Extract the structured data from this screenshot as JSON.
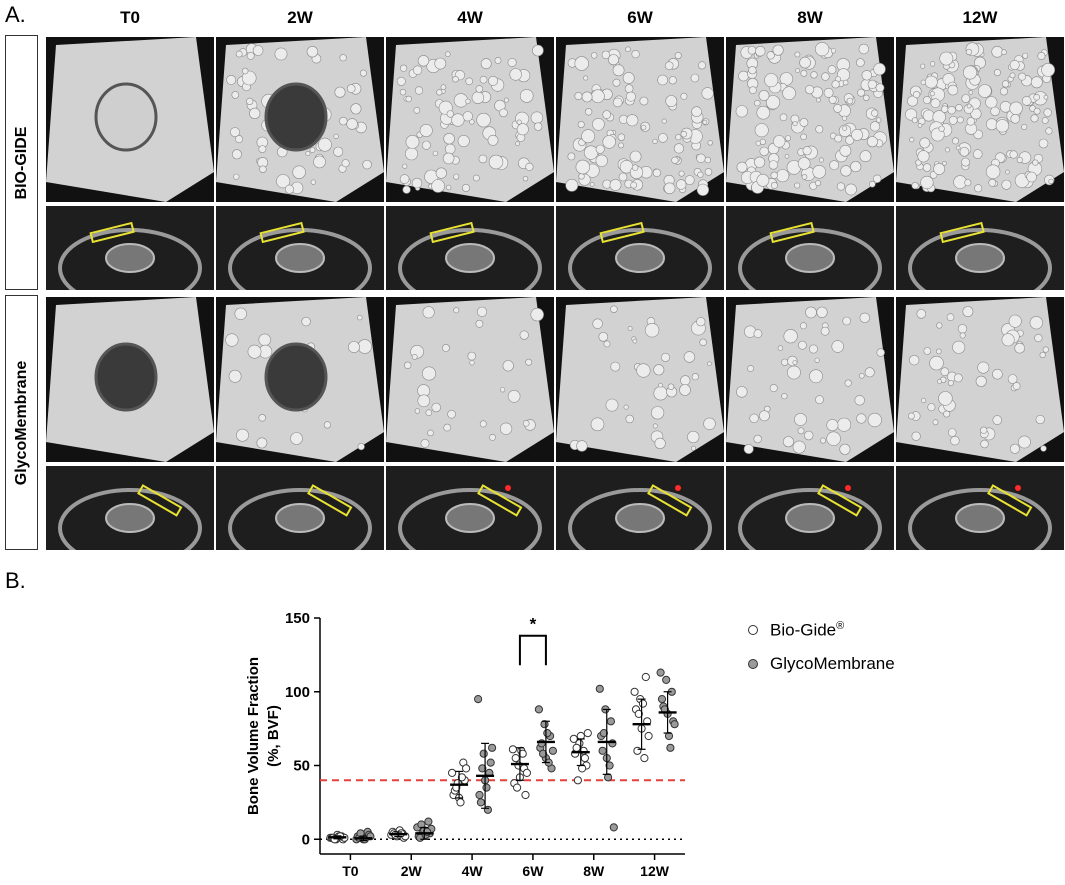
{
  "figure": {
    "panel_a_label": "A.",
    "panel_b_label": "B.",
    "timepoints": [
      "T0",
      "2W",
      "4W",
      "6W",
      "8W",
      "12W"
    ],
    "groups": [
      "BIO-GIDE",
      "GlycoMembrane"
    ],
    "image_description_names": [
      "3D micro-CT reconstruction",
      "2D cross-section with ROI"
    ],
    "colors": {
      "roi_box": "#e8e233",
      "threshold_line": "#e8413c",
      "marker_star": "#ff2a2a"
    }
  },
  "chart_data": {
    "type": "scatter",
    "ylabel_line1": "Bone Volume Fraction",
    "ylabel_line2": "(%, BVF)",
    "categories": [
      "T0",
      "2W",
      "4W",
      "6W",
      "8W",
      "12W"
    ],
    "yticks": [
      0,
      50,
      100,
      150
    ],
    "ylim": [
      -10,
      150
    ],
    "threshold": 40,
    "significance": {
      "label": "*",
      "category": "6W"
    },
    "series": [
      {
        "name": "Bio-Gide",
        "name_superscript": "®",
        "fill": "#ffffff",
        "points": [
          [
            1,
            0,
            2,
            1,
            3,
            0,
            1,
            2,
            1,
            0,
            2
          ],
          [
            3,
            2,
            4,
            5,
            3,
            1,
            4,
            6,
            2,
            3,
            4
          ],
          [
            45,
            38,
            52,
            30,
            28,
            40,
            33,
            25,
            48,
            35,
            42
          ],
          [
            61,
            50,
            48,
            38,
            42,
            30,
            55,
            60,
            45,
            35,
            58
          ],
          [
            68,
            65,
            55,
            58,
            70,
            50,
            62,
            48,
            72,
            40,
            60
          ],
          [
            100,
            95,
            110,
            88,
            75,
            80,
            60,
            92,
            70,
            85,
            55
          ]
        ],
        "mean": [
          1.3,
          3.4,
          37,
          51,
          59,
          78
        ],
        "sd": [
          1,
          1.5,
          9,
          11,
          9,
          17
        ]
      },
      {
        "name": "GlycoMembrane",
        "name_superscript": "",
        "fill": "#9a9a9a",
        "points": [
          [
            0,
            1,
            5,
            2,
            0,
            3,
            1,
            0,
            2,
            4
          ],
          [
            8,
            5,
            12,
            2,
            6,
            4,
            1,
            3,
            7,
            10,
            5
          ],
          [
            95,
            58,
            45,
            30,
            40,
            52,
            25,
            35,
            62,
            48,
            20
          ],
          [
            88,
            78,
            70,
            62,
            55,
            48,
            65,
            72,
            60,
            58,
            52
          ],
          [
            102,
            88,
            80,
            70,
            55,
            65,
            60,
            42,
            8,
            72,
            50
          ],
          [
            113,
            108,
            100,
            95,
            85,
            80,
            90,
            70,
            78,
            88,
            62
          ]
        ],
        "mean": [
          0.6,
          4,
          43,
          66,
          66,
          86
        ],
        "sd": [
          1.5,
          4,
          22,
          14,
          22,
          14
        ]
      }
    ],
    "legend_position": "top-right"
  }
}
